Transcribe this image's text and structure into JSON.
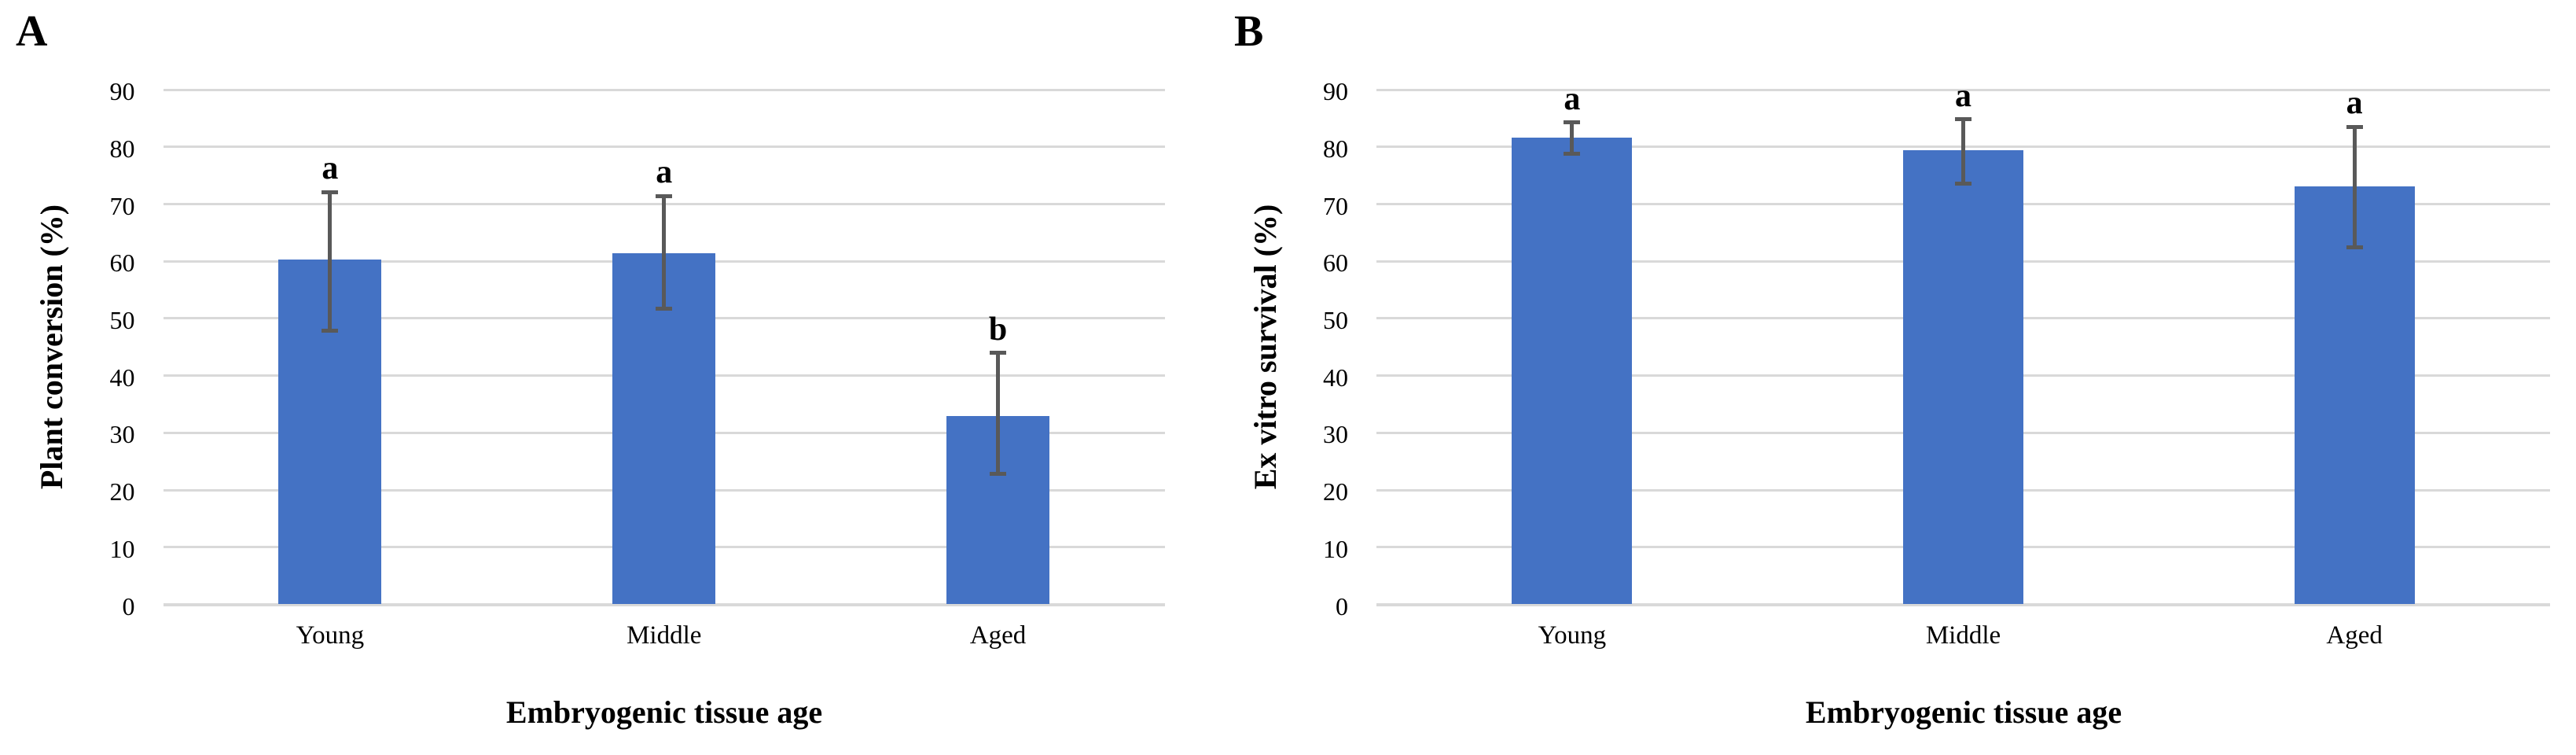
{
  "chart_data": [
    {
      "type": "bar",
      "panel_label": "A",
      "title": "",
      "xlabel": "Embryogenic tissue age",
      "ylabel": "Plant conversion (%)",
      "categories": [
        "Young",
        "Middle",
        "Aged"
      ],
      "series": [
        {
          "name": "Plant conversion (%)",
          "values": [
            60.3,
            61.4,
            33.0
          ],
          "error_low": [
            47.9,
            51.7,
            22.8
          ],
          "error_high": [
            72.1,
            71.4,
            44.0
          ],
          "significance_letters": [
            "a",
            "a",
            "b"
          ]
        }
      ],
      "y_ticks": [
        0,
        10,
        20,
        30,
        40,
        50,
        60,
        70,
        80,
        90
      ],
      "ylim": [
        0,
        90
      ],
      "grid": "horizontal",
      "legend": "none",
      "bar_color": "#4472C4",
      "error_bar_color": "#595959",
      "gridline_color": "#D9D9D9"
    },
    {
      "type": "bar",
      "panel_label": "B",
      "title": "",
      "xlabel": "Embryogenic tissue age",
      "ylabel": "Ex vitro survival (%)",
      "categories": [
        "Young",
        "Middle",
        "Aged"
      ],
      "series": [
        {
          "name": "Ex vitro survival (%)",
          "values": [
            81.6,
            79.4,
            73.1
          ],
          "error_low": [
            78.8,
            73.6,
            62.5
          ],
          "error_high": [
            84.3,
            84.8,
            83.5
          ],
          "significance_letters": [
            "a",
            "a",
            "a"
          ]
        }
      ],
      "y_ticks": [
        0,
        10,
        20,
        30,
        40,
        50,
        60,
        70,
        80,
        90
      ],
      "ylim": [
        0,
        90
      ],
      "grid": "horizontal",
      "legend": "none",
      "bar_color": "#4472C4",
      "error_bar_color": "#595959",
      "gridline_color": "#D9D9D9"
    }
  ]
}
